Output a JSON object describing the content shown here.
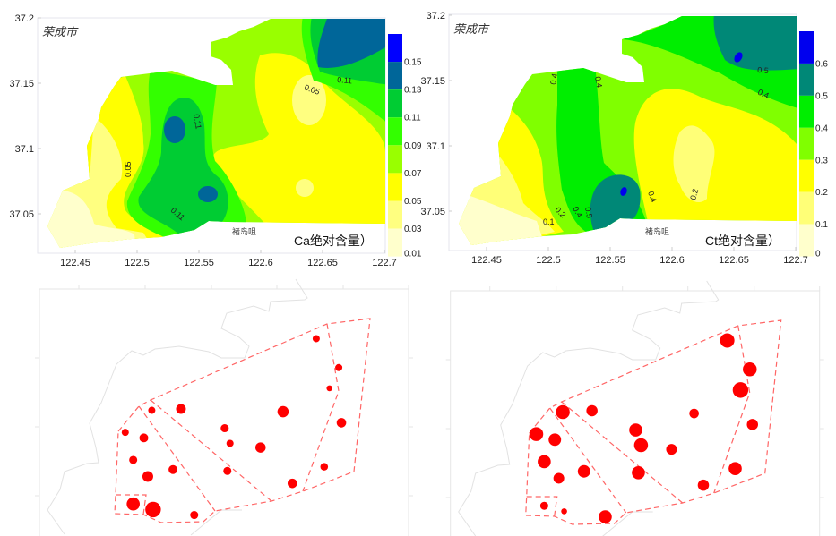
{
  "figure": {
    "axes": {
      "x_ticks": [
        "122.45",
        "122.5",
        "122.55",
        "122.6",
        "122.65",
        "122.7"
      ],
      "y_ticks": [
        "37.2",
        "37.15",
        "37.1",
        "37.05"
      ]
    },
    "city_label": "荣成市",
    "place_label": "褚岛咀"
  },
  "maps": [
    {
      "type": "contour",
      "title": "Ca绝对含量）",
      "colorbar": {
        "labels": [
          "0.15",
          "0.13",
          "0.11",
          "0.09",
          "0.07",
          "0.05",
          "0.03",
          "0.01"
        ],
        "colors": [
          "#0000ff",
          "#006699",
          "#00cc33",
          "#33ff00",
          "#99ff00",
          "#ffff00",
          "#ffff80",
          "#ffffcc"
        ]
      },
      "contour_labels": [
        "0.11",
        "0.05",
        "0.11",
        "0.05",
        "0.11"
      ]
    },
    {
      "type": "contour",
      "title": "Ct绝对含量）",
      "colorbar": {
        "labels": [
          "0.6",
          "0.5",
          "0.4",
          "0.3",
          "0.2",
          "0.1",
          "0"
        ],
        "colors": [
          "#0000ee",
          "#008877",
          "#00ee00",
          "#80ff00",
          "#ffff00",
          "#ffff77",
          "#ffffcc"
        ]
      },
      "contour_labels": [
        "0.4",
        "0.4",
        "0.5",
        "0.4",
        "0.4",
        "0.5",
        "0.2",
        "0.1",
        "0.2",
        "0.4"
      ]
    }
  ],
  "stations": {
    "lonlat": [
      [
        122.629,
        37.164
      ],
      [
        122.646,
        37.143
      ],
      [
        122.639,
        37.128
      ],
      [
        122.648,
        37.103
      ],
      [
        122.604,
        37.111
      ],
      [
        122.587,
        37.085
      ],
      [
        122.56,
        37.099
      ],
      [
        122.564,
        37.088
      ],
      [
        122.562,
        37.068
      ],
      [
        122.527,
        37.113
      ],
      [
        122.505,
        37.112
      ],
      [
        122.485,
        37.096
      ],
      [
        122.499,
        37.092
      ],
      [
        122.491,
        37.076
      ],
      [
        122.502,
        37.064
      ],
      [
        122.521,
        37.069
      ],
      [
        122.491,
        37.044
      ],
      [
        122.506,
        37.04
      ],
      [
        122.537,
        37.036
      ],
      [
        122.611,
        37.059
      ],
      [
        122.635,
        37.071
      ]
    ],
    "relative_value_ca": [
      0.46,
      0.46,
      0.38,
      0.61,
      0.72,
      0.66,
      0.52,
      0.46,
      0.52,
      0.63,
      0.46,
      0.46,
      0.57,
      0.52,
      0.69,
      0.57,
      0.84,
      1.0,
      0.52,
      0.61,
      0.49
    ],
    "relative_value_ct": [
      0.92,
      0.89,
      1.0,
      0.72,
      0.61,
      0.69,
      0.84,
      0.89,
      0.84,
      0.72,
      0.89,
      0.89,
      0.8,
      0.84,
      0.69,
      0.8,
      0.52,
      0.38,
      0.84,
      0.72,
      0.84
    ],
    "marker_color": "#ff0000",
    "zone_line_color": "#ff6666"
  }
}
